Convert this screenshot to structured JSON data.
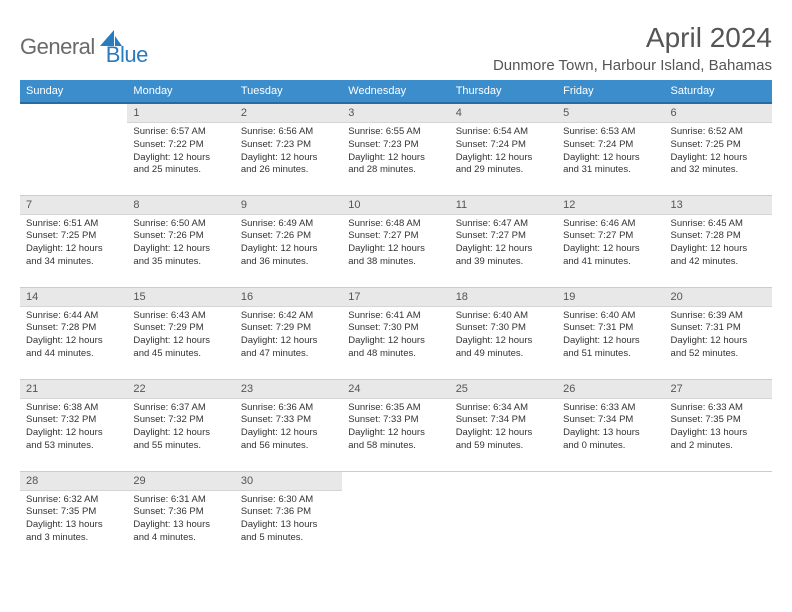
{
  "brand": {
    "word1": "General",
    "word2": "Blue"
  },
  "title": "April 2024",
  "location": "Dunmore Town, Harbour Island, Bahamas",
  "colors": {
    "header_bg": "#3c8dcc",
    "header_border": "#2a6aa0",
    "daynum_bg": "#e8e8e8",
    "text_main": "#333333",
    "text_muted": "#555555",
    "logo_gray": "#6a6a6a",
    "logo_blue": "#2a7bbf",
    "grid_line": "#cccccc",
    "page_bg": "#ffffff"
  },
  "weekdays": [
    "Sunday",
    "Monday",
    "Tuesday",
    "Wednesday",
    "Thursday",
    "Friday",
    "Saturday"
  ],
  "rows": [
    [
      null,
      {
        "num": "1",
        "sunrise": "Sunrise: 6:57 AM",
        "sunset": "Sunset: 7:22 PM",
        "day1": "Daylight: 12 hours",
        "day2": "and 25 minutes."
      },
      {
        "num": "2",
        "sunrise": "Sunrise: 6:56 AM",
        "sunset": "Sunset: 7:23 PM",
        "day1": "Daylight: 12 hours",
        "day2": "and 26 minutes."
      },
      {
        "num": "3",
        "sunrise": "Sunrise: 6:55 AM",
        "sunset": "Sunset: 7:23 PM",
        "day1": "Daylight: 12 hours",
        "day2": "and 28 minutes."
      },
      {
        "num": "4",
        "sunrise": "Sunrise: 6:54 AM",
        "sunset": "Sunset: 7:24 PM",
        "day1": "Daylight: 12 hours",
        "day2": "and 29 minutes."
      },
      {
        "num": "5",
        "sunrise": "Sunrise: 6:53 AM",
        "sunset": "Sunset: 7:24 PM",
        "day1": "Daylight: 12 hours",
        "day2": "and 31 minutes."
      },
      {
        "num": "6",
        "sunrise": "Sunrise: 6:52 AM",
        "sunset": "Sunset: 7:25 PM",
        "day1": "Daylight: 12 hours",
        "day2": "and 32 minutes."
      }
    ],
    [
      {
        "num": "7",
        "sunrise": "Sunrise: 6:51 AM",
        "sunset": "Sunset: 7:25 PM",
        "day1": "Daylight: 12 hours",
        "day2": "and 34 minutes."
      },
      {
        "num": "8",
        "sunrise": "Sunrise: 6:50 AM",
        "sunset": "Sunset: 7:26 PM",
        "day1": "Daylight: 12 hours",
        "day2": "and 35 minutes."
      },
      {
        "num": "9",
        "sunrise": "Sunrise: 6:49 AM",
        "sunset": "Sunset: 7:26 PM",
        "day1": "Daylight: 12 hours",
        "day2": "and 36 minutes."
      },
      {
        "num": "10",
        "sunrise": "Sunrise: 6:48 AM",
        "sunset": "Sunset: 7:27 PM",
        "day1": "Daylight: 12 hours",
        "day2": "and 38 minutes."
      },
      {
        "num": "11",
        "sunrise": "Sunrise: 6:47 AM",
        "sunset": "Sunset: 7:27 PM",
        "day1": "Daylight: 12 hours",
        "day2": "and 39 minutes."
      },
      {
        "num": "12",
        "sunrise": "Sunrise: 6:46 AM",
        "sunset": "Sunset: 7:27 PM",
        "day1": "Daylight: 12 hours",
        "day2": "and 41 minutes."
      },
      {
        "num": "13",
        "sunrise": "Sunrise: 6:45 AM",
        "sunset": "Sunset: 7:28 PM",
        "day1": "Daylight: 12 hours",
        "day2": "and 42 minutes."
      }
    ],
    [
      {
        "num": "14",
        "sunrise": "Sunrise: 6:44 AM",
        "sunset": "Sunset: 7:28 PM",
        "day1": "Daylight: 12 hours",
        "day2": "and 44 minutes."
      },
      {
        "num": "15",
        "sunrise": "Sunrise: 6:43 AM",
        "sunset": "Sunset: 7:29 PM",
        "day1": "Daylight: 12 hours",
        "day2": "and 45 minutes."
      },
      {
        "num": "16",
        "sunrise": "Sunrise: 6:42 AM",
        "sunset": "Sunset: 7:29 PM",
        "day1": "Daylight: 12 hours",
        "day2": "and 47 minutes."
      },
      {
        "num": "17",
        "sunrise": "Sunrise: 6:41 AM",
        "sunset": "Sunset: 7:30 PM",
        "day1": "Daylight: 12 hours",
        "day2": "and 48 minutes."
      },
      {
        "num": "18",
        "sunrise": "Sunrise: 6:40 AM",
        "sunset": "Sunset: 7:30 PM",
        "day1": "Daylight: 12 hours",
        "day2": "and 49 minutes."
      },
      {
        "num": "19",
        "sunrise": "Sunrise: 6:40 AM",
        "sunset": "Sunset: 7:31 PM",
        "day1": "Daylight: 12 hours",
        "day2": "and 51 minutes."
      },
      {
        "num": "20",
        "sunrise": "Sunrise: 6:39 AM",
        "sunset": "Sunset: 7:31 PM",
        "day1": "Daylight: 12 hours",
        "day2": "and 52 minutes."
      }
    ],
    [
      {
        "num": "21",
        "sunrise": "Sunrise: 6:38 AM",
        "sunset": "Sunset: 7:32 PM",
        "day1": "Daylight: 12 hours",
        "day2": "and 53 minutes."
      },
      {
        "num": "22",
        "sunrise": "Sunrise: 6:37 AM",
        "sunset": "Sunset: 7:32 PM",
        "day1": "Daylight: 12 hours",
        "day2": "and 55 minutes."
      },
      {
        "num": "23",
        "sunrise": "Sunrise: 6:36 AM",
        "sunset": "Sunset: 7:33 PM",
        "day1": "Daylight: 12 hours",
        "day2": "and 56 minutes."
      },
      {
        "num": "24",
        "sunrise": "Sunrise: 6:35 AM",
        "sunset": "Sunset: 7:33 PM",
        "day1": "Daylight: 12 hours",
        "day2": "and 58 minutes."
      },
      {
        "num": "25",
        "sunrise": "Sunrise: 6:34 AM",
        "sunset": "Sunset: 7:34 PM",
        "day1": "Daylight: 12 hours",
        "day2": "and 59 minutes."
      },
      {
        "num": "26",
        "sunrise": "Sunrise: 6:33 AM",
        "sunset": "Sunset: 7:34 PM",
        "day1": "Daylight: 13 hours",
        "day2": "and 0 minutes."
      },
      {
        "num": "27",
        "sunrise": "Sunrise: 6:33 AM",
        "sunset": "Sunset: 7:35 PM",
        "day1": "Daylight: 13 hours",
        "day2": "and 2 minutes."
      }
    ],
    [
      {
        "num": "28",
        "sunrise": "Sunrise: 6:32 AM",
        "sunset": "Sunset: 7:35 PM",
        "day1": "Daylight: 13 hours",
        "day2": "and 3 minutes."
      },
      {
        "num": "29",
        "sunrise": "Sunrise: 6:31 AM",
        "sunset": "Sunset: 7:36 PM",
        "day1": "Daylight: 13 hours",
        "day2": "and 4 minutes."
      },
      {
        "num": "30",
        "sunrise": "Sunrise: 6:30 AM",
        "sunset": "Sunset: 7:36 PM",
        "day1": "Daylight: 13 hours",
        "day2": "and 5 minutes."
      },
      null,
      null,
      null,
      null
    ]
  ]
}
